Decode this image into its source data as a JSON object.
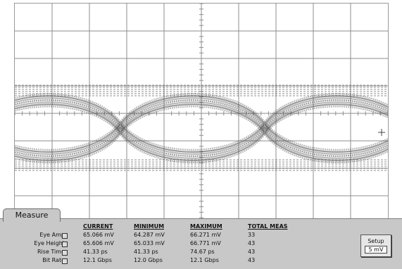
{
  "measure_tab": {
    "label": "Measure"
  },
  "table": {
    "headers": [
      "CURRENT",
      "MINIMUM",
      "MAXIMUM",
      "TOTAL MEAS"
    ],
    "rows": [
      {
        "label": "Eye Amp",
        "values": [
          "65.066 mV",
          "64.287 mV",
          "66.271 mV",
          "33"
        ]
      },
      {
        "label": "Eye Height",
        "values": [
          "65.606 mV",
          "65.033 mV",
          "66.771 mV",
          "43"
        ]
      },
      {
        "label": "Rise Time",
        "values": [
          "41.33 ps",
          "41.33 ps",
          "74.67 ps",
          "43"
        ]
      },
      {
        "label": "Bit Rate",
        "values": [
          "12.1 Gbps",
          "12.0 Gbps",
          "12.1 Gbps",
          "43"
        ]
      }
    ]
  },
  "setup_button": {
    "label": "Setup",
    "value": "5 mV"
  },
  "colors": {
    "grid": "#8e8e8e",
    "trace": "#3a3a3a",
    "panel": "#c8c8c8"
  }
}
